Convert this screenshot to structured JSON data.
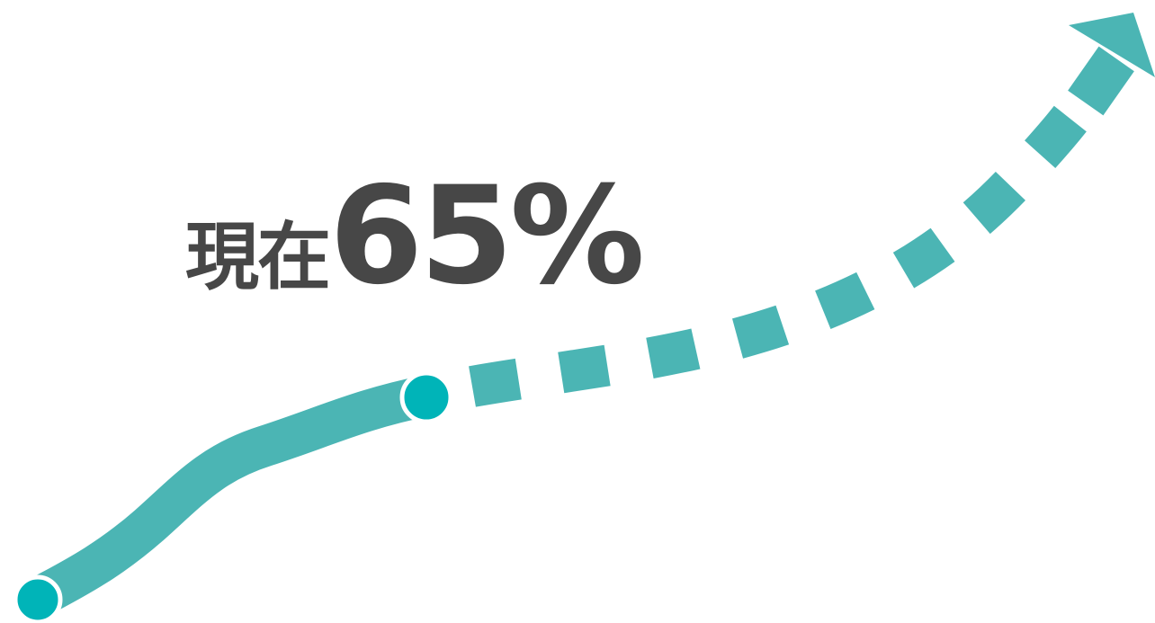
{
  "progress": {
    "prefix": "現在",
    "value": "65%",
    "fraction": 0.65
  },
  "colors": {
    "trend_line": "#4bb5b4",
    "marker": "#00b4b8",
    "marker_outline": "#ffffff",
    "text": "#474747",
    "background": "#ffffff"
  },
  "icons": {
    "arrow_head": "arrow-up-right-icon",
    "start_point": "start-dot-icon",
    "current_point": "current-dot-icon"
  }
}
